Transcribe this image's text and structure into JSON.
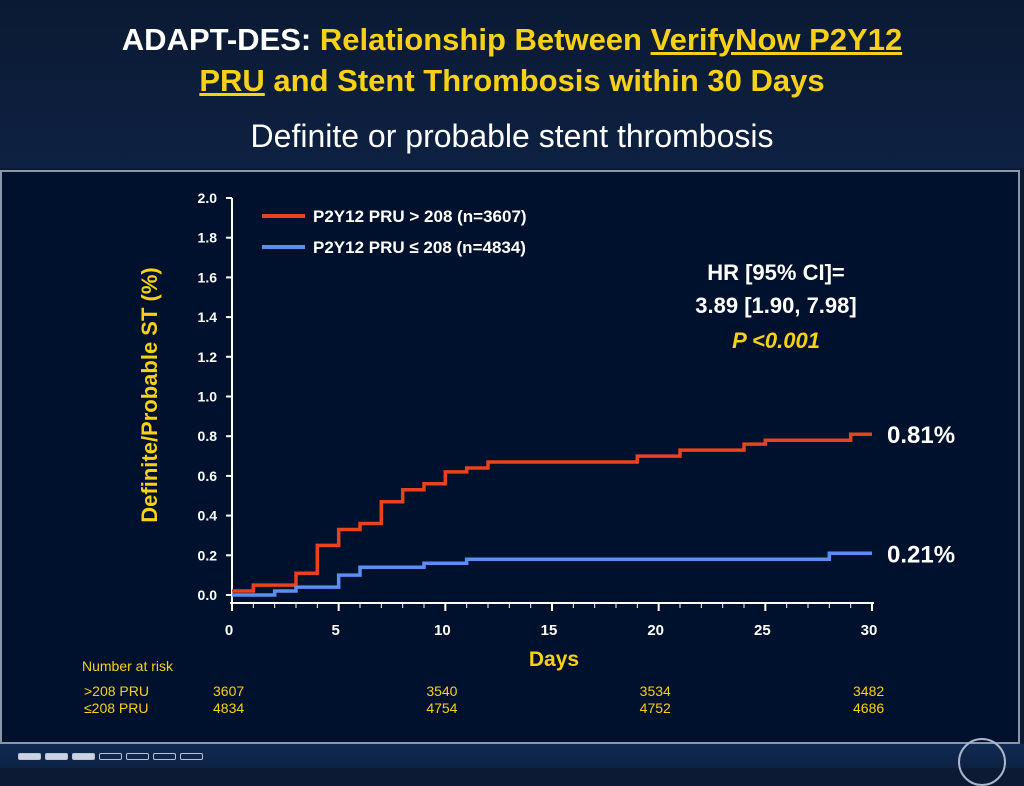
{
  "header": {
    "title_prefix": "ADAPT-DES:",
    "title_part1": "Relationship Between",
    "title_link1": "VerifyNow P2Y12",
    "title_link2": "PRU",
    "title_part2": "and Stent Thrombosis within 30 Days",
    "subtitle": "Definite or probable stent thrombosis"
  },
  "chart_data": {
    "type": "line",
    "step": true,
    "ylabel": "Definite/Probable ST (%)",
    "xlabel": "Days",
    "xlim": [
      0,
      30
    ],
    "ylim": [
      0,
      2.0
    ],
    "x_ticks": [
      "0",
      "5",
      "10",
      "15",
      "20",
      "25",
      "30"
    ],
    "y_ticks": [
      "0.0",
      "0.2",
      "0.4",
      "0.6",
      "0.8",
      "1.0",
      "1.2",
      "1.4",
      "1.6",
      "1.8",
      "2.0"
    ],
    "legend_position": "top-left",
    "series": [
      {
        "name": "P2Y12 PRU > 208 (n=3607)",
        "color": "#e8431d",
        "end_label": "0.81%",
        "points": [
          [
            0,
            0.02
          ],
          [
            1,
            0.02
          ],
          [
            1,
            0.05
          ],
          [
            3,
            0.05
          ],
          [
            3,
            0.11
          ],
          [
            4,
            0.11
          ],
          [
            4,
            0.25
          ],
          [
            5,
            0.25
          ],
          [
            5,
            0.33
          ],
          [
            6,
            0.33
          ],
          [
            6,
            0.36
          ],
          [
            7,
            0.36
          ],
          [
            7,
            0.47
          ],
          [
            8,
            0.47
          ],
          [
            8,
            0.53
          ],
          [
            9,
            0.53
          ],
          [
            9,
            0.56
          ],
          [
            10,
            0.56
          ],
          [
            10,
            0.62
          ],
          [
            11,
            0.62
          ],
          [
            11,
            0.64
          ],
          [
            12,
            0.64
          ],
          [
            12,
            0.67
          ],
          [
            19,
            0.67
          ],
          [
            19,
            0.7
          ],
          [
            21,
            0.7
          ],
          [
            21,
            0.73
          ],
          [
            24,
            0.73
          ],
          [
            24,
            0.76
          ],
          [
            25,
            0.76
          ],
          [
            25,
            0.78
          ],
          [
            29,
            0.78
          ],
          [
            29,
            0.81
          ],
          [
            30,
            0.81
          ]
        ]
      },
      {
        "name": "P2Y12 PRU ≤ 208 (n=4834)",
        "color": "#5a8ef0",
        "end_label": "0.21%",
        "points": [
          [
            0,
            0.0
          ],
          [
            2,
            0.0
          ],
          [
            2,
            0.02
          ],
          [
            3,
            0.02
          ],
          [
            3,
            0.04
          ],
          [
            5,
            0.04
          ],
          [
            5,
            0.1
          ],
          [
            6,
            0.1
          ],
          [
            6,
            0.14
          ],
          [
            9,
            0.14
          ],
          [
            9,
            0.16
          ],
          [
            11,
            0.16
          ],
          [
            11,
            0.18
          ],
          [
            28,
            0.18
          ],
          [
            28,
            0.21
          ],
          [
            30,
            0.21
          ]
        ]
      }
    ],
    "annotation": {
      "line1": "HR [95% CI]=",
      "line2": "3.89 [1.90, 7.98]",
      "line3": "P <0.001"
    },
    "risk_table": {
      "title": "Number at risk",
      "x_positions": [
        0,
        10,
        20,
        30
      ],
      "rows": [
        {
          "label": ">208 PRU",
          "values": [
            "3607",
            "3540",
            "3534",
            "3482"
          ]
        },
        {
          "label": "≤208 PRU",
          "values": [
            "4834",
            "4754",
            "4752",
            "4686"
          ]
        }
      ]
    }
  },
  "colors": {
    "accent_yellow": "#f7d117",
    "background": "#00112d"
  }
}
